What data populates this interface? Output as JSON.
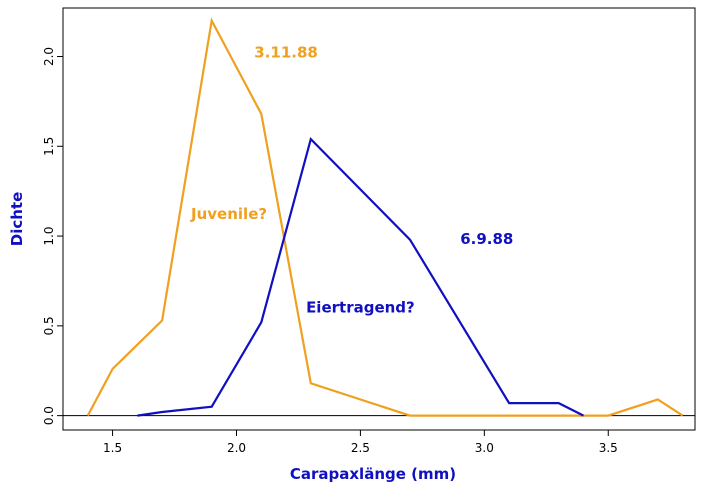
{
  "chart_data": {
    "type": "line",
    "xlabel": "Carapaxlänge (mm)",
    "ylabel": "Dichte",
    "xlim": [
      1.3,
      3.85
    ],
    "ylim": [
      -0.08,
      2.27
    ],
    "xticks": [
      "1.5",
      "2.0",
      "2.5",
      "3.0",
      "3.5"
    ],
    "yticks": [
      "0.0",
      "0.5",
      "1.0",
      "1.5",
      "2.0"
    ],
    "reference_line_y": 0,
    "grid": false,
    "legend": "none",
    "series": [
      {
        "color": "#f0a020",
        "x": [
          1.4,
          1.5,
          1.7,
          1.9,
          2.1,
          2.3,
          2.7,
          3.1,
          3.5,
          3.7,
          3.8
        ],
        "y": [
          0.0,
          0.26,
          0.53,
          2.2,
          1.68,
          0.18,
          0.0,
          0.0,
          0.0,
          0.09,
          0.0
        ]
      },
      {
        "color": "#1010c0",
        "x": [
          1.6,
          1.7,
          1.9,
          2.1,
          2.3,
          2.7,
          3.1,
          3.3,
          3.4
        ],
        "y": [
          0.0,
          0.02,
          0.05,
          0.52,
          1.54,
          0.98,
          0.07,
          0.07,
          0.0
        ]
      }
    ],
    "annotations": [
      {
        "text": "3.11.88",
        "x": 2.2,
        "y": 2.02,
        "color": "#f0a020"
      },
      {
        "text": "Juvenile?",
        "x": 1.97,
        "y": 1.12,
        "color": "#f0a020"
      },
      {
        "text": "6.9.88",
        "x": 3.01,
        "y": 0.98,
        "color": "#1010c0"
      },
      {
        "text": "Eiertragend?",
        "x": 2.5,
        "y": 0.6,
        "color": "#1010c0"
      }
    ],
    "axis_title_colors": {
      "x": "#1010c0",
      "y": "#1010c0"
    }
  }
}
